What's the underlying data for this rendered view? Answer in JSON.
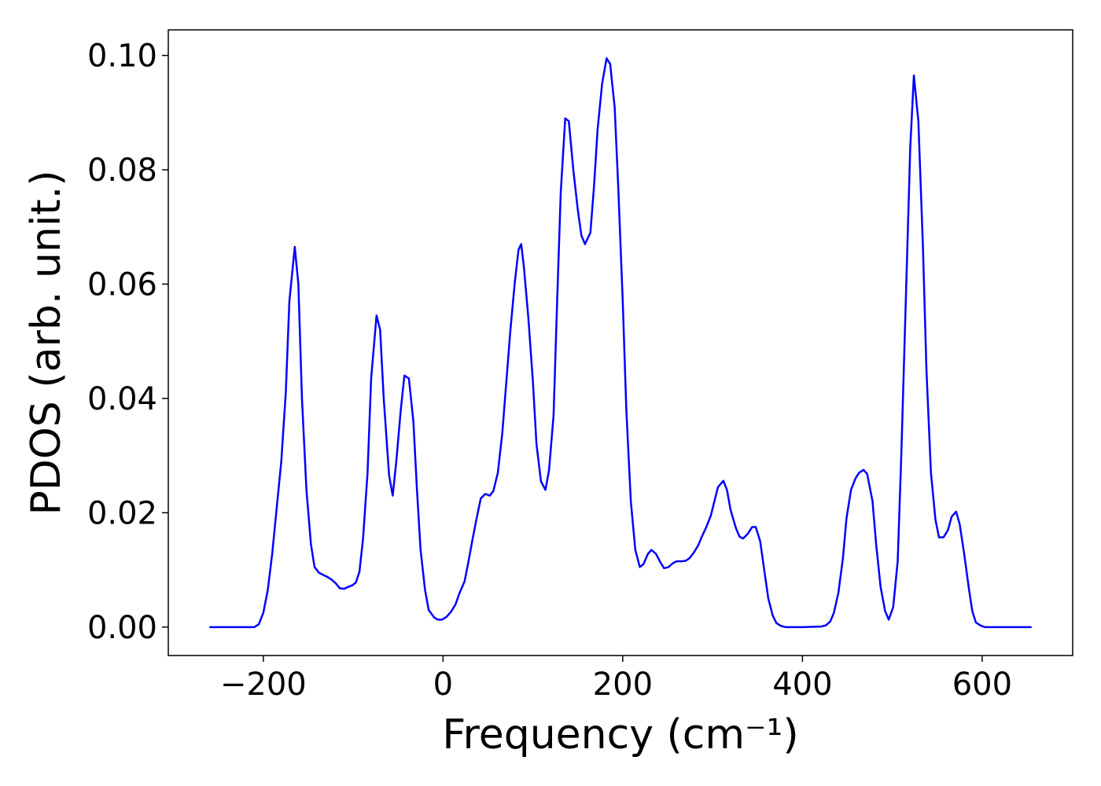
{
  "chart_data": {
    "type": "line",
    "x_label": "Frequency (cm⁻¹)",
    "y_label": "PDOS (arb. unit.)",
    "color": "#0000ff",
    "x": [
      -260,
      -240,
      -220,
      -210,
      -205,
      -200,
      -195,
      -190,
      -185,
      -180,
      -175,
      -171,
      -165,
      -161,
      -157,
      -152,
      -147,
      -143,
      -138,
      -133,
      -129,
      -124,
      -119,
      -115,
      -110,
      -106,
      -101,
      -97,
      -93,
      -89,
      -84,
      -80,
      -74,
      -70,
      -66,
      -60,
      -56,
      -52,
      -47,
      -43,
      -38,
      -33,
      -29,
      -25,
      -20,
      -16,
      -10,
      -6,
      -1,
      4,
      9,
      14,
      18,
      24,
      28,
      33,
      38,
      42,
      47,
      52,
      56,
      61,
      66,
      70,
      75,
      80,
      84,
      87,
      90,
      95,
      100,
      104,
      109,
      114,
      118,
      123,
      127,
      131,
      136,
      140,
      145,
      150,
      154,
      158,
      164,
      168,
      172,
      177,
      182,
      186,
      191,
      195,
      200,
      204,
      209,
      214,
      219,
      223,
      228,
      232,
      237,
      242,
      246,
      251,
      256,
      260,
      265,
      270,
      274,
      279,
      284,
      288,
      293,
      298,
      302,
      306,
      312,
      316,
      320,
      326,
      330,
      334,
      339,
      344,
      348,
      353,
      357,
      362,
      367,
      371,
      376,
      381,
      400,
      421,
      426,
      431,
      435,
      440,
      445,
      449,
      454,
      459,
      463,
      468,
      472,
      478,
      482,
      487,
      492,
      496,
      501,
      506,
      510,
      515,
      520,
      524,
      529,
      534,
      538,
      543,
      548,
      552,
      557,
      562,
      566,
      571,
      575,
      580,
      585,
      589,
      593,
      599,
      603,
      630,
      655
    ],
    "values": [
      0,
      0,
      0,
      0,
      0.0005,
      0.0025,
      0.0065,
      0.013,
      0.021,
      0.029,
      0.041,
      0.057,
      0.0665,
      0.06,
      0.04,
      0.024,
      0.0145,
      0.0105,
      0.0095,
      0.0091,
      0.0088,
      0.0083,
      0.0076,
      0.0068,
      0.0067,
      0.007,
      0.0073,
      0.0078,
      0.0097,
      0.0155,
      0.027,
      0.0435,
      0.0545,
      0.052,
      0.04,
      0.0265,
      0.023,
      0.029,
      0.038,
      0.044,
      0.0435,
      0.036,
      0.024,
      0.0135,
      0.0065,
      0.003,
      0.0017,
      0.0013,
      0.0013,
      0.0018,
      0.0027,
      0.004,
      0.0058,
      0.008,
      0.0112,
      0.0155,
      0.0195,
      0.0225,
      0.0233,
      0.023,
      0.0238,
      0.027,
      0.034,
      0.042,
      0.052,
      0.0605,
      0.066,
      0.067,
      0.063,
      0.054,
      0.043,
      0.032,
      0.0255,
      0.024,
      0.0275,
      0.037,
      0.057,
      0.076,
      0.089,
      0.0885,
      0.08,
      0.073,
      0.0685,
      0.067,
      0.069,
      0.077,
      0.087,
      0.095,
      0.0995,
      0.0985,
      0.091,
      0.077,
      0.057,
      0.038,
      0.022,
      0.0135,
      0.0105,
      0.011,
      0.0128,
      0.0135,
      0.0128,
      0.0113,
      0.0103,
      0.0105,
      0.0112,
      0.0115,
      0.0115,
      0.0116,
      0.012,
      0.013,
      0.0143,
      0.0158,
      0.0175,
      0.0195,
      0.022,
      0.0245,
      0.0256,
      0.024,
      0.0205,
      0.0173,
      0.0158,
      0.0155,
      0.0163,
      0.0175,
      0.0175,
      0.015,
      0.0105,
      0.005,
      0.002,
      0.0007,
      0.0002,
      0,
      0,
      0.0001,
      0.0003,
      0.001,
      0.0025,
      0.006,
      0.012,
      0.019,
      0.024,
      0.026,
      0.027,
      0.0275,
      0.0268,
      0.022,
      0.0145,
      0.007,
      0.0028,
      0.0013,
      0.0035,
      0.0115,
      0.03,
      0.057,
      0.084,
      0.0965,
      0.0885,
      0.067,
      0.045,
      0.027,
      0.0188,
      0.0157,
      0.0157,
      0.017,
      0.0193,
      0.0202,
      0.018,
      0.0128,
      0.007,
      0.0028,
      0.0008,
      0.0002,
      0,
      0,
      0
    ],
    "xlim": [
      -305.75,
      700.75
    ],
    "ylim": [
      -0.004975,
      0.104475
    ],
    "xticks": [
      {
        "value": -200,
        "label": "−200"
      },
      0,
      200,
      400,
      600
    ],
    "yticks": [
      {
        "value": 0,
        "label": "0.00"
      },
      {
        "value": 0.02,
        "label": "0.02"
      },
      {
        "value": 0.04,
        "label": "0.04"
      },
      {
        "value": 0.06,
        "label": "0.06"
      },
      {
        "value": 0.08,
        "label": "0.08"
      },
      {
        "value": 0.1,
        "label": "0.10"
      }
    ],
    "grid": false
  }
}
